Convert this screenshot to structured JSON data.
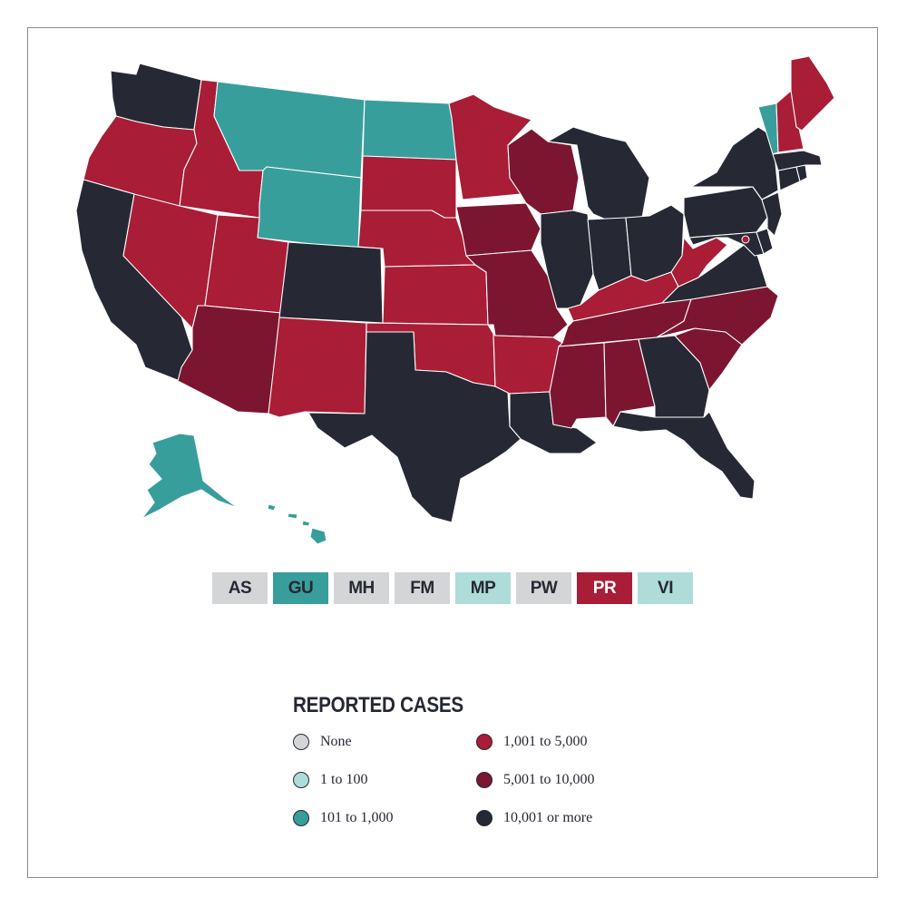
{
  "legend": {
    "title": "REPORTED CASES",
    "categories": [
      {
        "id": "none",
        "label": "None",
        "color": "#d4d5d7"
      },
      {
        "id": "c1_100",
        "label": "1 to 100",
        "color": "#aedcd9"
      },
      {
        "id": "c101_1000",
        "label": "101 to 1,000",
        "color": "#389e9b"
      },
      {
        "id": "c1001_5000",
        "label": "1,001 to 5,000",
        "color": "#a91d37"
      },
      {
        "id": "c5001_10000",
        "label": "5,001 to 10,000",
        "color": "#7c1630"
      },
      {
        "id": "c10001",
        "label": "10,001 or more",
        "color": "#262834"
      }
    ]
  },
  "territories": [
    {
      "code": "AS",
      "category": "none"
    },
    {
      "code": "GU",
      "category": "c101_1000"
    },
    {
      "code": "MH",
      "category": "none"
    },
    {
      "code": "FM",
      "category": "none"
    },
    {
      "code": "MP",
      "category": "c1_100"
    },
    {
      "code": "PW",
      "category": "none"
    },
    {
      "code": "PR",
      "category": "c1001_5000"
    },
    {
      "code": "VI",
      "category": "c1_100"
    }
  ],
  "states": {
    "WA": "c10001",
    "OR": "c1001_5000",
    "CA": "c10001",
    "ID": "c1001_5000",
    "NV": "c1001_5000",
    "MT": "c101_1000",
    "WY": "c101_1000",
    "UT": "c1001_5000",
    "AZ": "c5001_10000",
    "CO": "c10001",
    "NM": "c1001_5000",
    "ND": "c101_1000",
    "SD": "c1001_5000",
    "NE": "c1001_5000",
    "KS": "c1001_5000",
    "OK": "c1001_5000",
    "TX": "c10001",
    "MN": "c1001_5000",
    "IA": "c5001_10000",
    "MO": "c5001_10000",
    "AR": "c1001_5000",
    "LA": "c10001",
    "WI": "c5001_10000",
    "IL": "c10001",
    "MI": "c10001",
    "IN": "c10001",
    "OH": "c10001",
    "KY": "c1001_5000",
    "TN": "c5001_10000",
    "MS": "c5001_10000",
    "AL": "c5001_10000",
    "GA": "c10001",
    "FL": "c10001",
    "SC": "c5001_10000",
    "NC": "c5001_10000",
    "VA": "c10001",
    "WV": "c1001_5000",
    "MD": "c10001",
    "DE": "c10001",
    "DC": "c1001_5000",
    "PA": "c10001",
    "NJ": "c10001",
    "NY": "c10001",
    "CT": "c10001",
    "RI": "c10001",
    "MA": "c10001",
    "VT": "c101_1000",
    "NH": "c1001_5000",
    "ME": "c1001_5000",
    "AK": "c101_1000",
    "HI": "c101_1000"
  }
}
